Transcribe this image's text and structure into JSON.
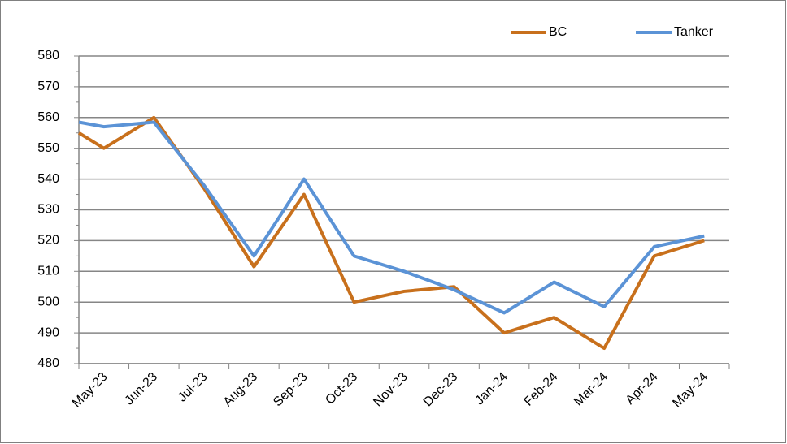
{
  "chart_data": {
    "type": "line",
    "x": [
      -0.5,
      0,
      1,
      2,
      3,
      4,
      5,
      6,
      7,
      8,
      9,
      10,
      11,
      12
    ],
    "xlim": [
      -0.5,
      12.5
    ],
    "xticks": [
      {
        "value": 0,
        "label": "May-23"
      },
      {
        "value": 1,
        "label": "Jun-23"
      },
      {
        "value": 2,
        "label": "Jul-23"
      },
      {
        "value": 3,
        "label": "Aug-23"
      },
      {
        "value": 4,
        "label": "Sep-23"
      },
      {
        "value": 5,
        "label": "Oct-23"
      },
      {
        "value": 6,
        "label": "Nov-23"
      },
      {
        "value": 7,
        "label": "Dec-23"
      },
      {
        "value": 8,
        "label": "Jan-24"
      },
      {
        "value": 9,
        "label": "Feb-24"
      },
      {
        "value": 10,
        "label": "Mar-24"
      },
      {
        "value": 11,
        "label": "Apr-24"
      },
      {
        "value": 12,
        "label": "May-24"
      }
    ],
    "series": [
      {
        "name": "BC",
        "color": "#c8701c",
        "values": [
          555,
          550,
          560,
          537,
          511.5,
          535,
          500,
          503.5,
          505,
          490,
          495,
          485,
          515,
          520
        ]
      },
      {
        "name": "Tanker",
        "color": "#5b93d6",
        "values": [
          558.5,
          557,
          558.5,
          538,
          515,
          540,
          515,
          510,
          504,
          496.5,
          506.5,
          498.5,
          518,
          521.5
        ]
      }
    ],
    "ylim": [
      480,
      580
    ],
    "yticks": [
      480,
      490,
      500,
      510,
      520,
      530,
      540,
      550,
      560,
      570,
      580
    ],
    "grid": true,
    "legend": "top-right"
  }
}
